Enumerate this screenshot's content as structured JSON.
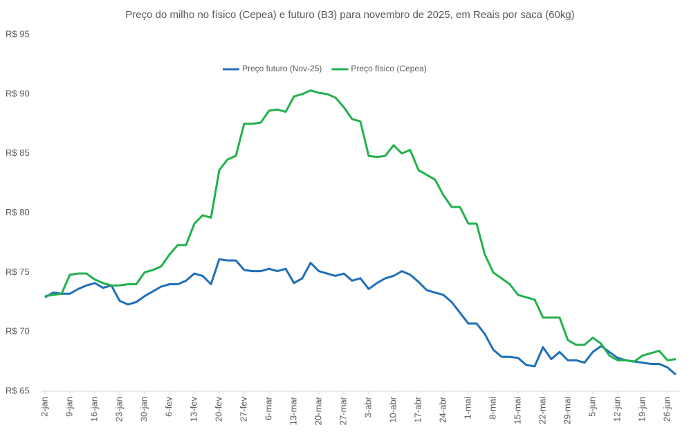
{
  "chart_data": {
    "type": "line",
    "title": "Preço do milho no físico (Cepea) e futuro (B3) para novembro de 2025, em Reais por saca (60kg)",
    "categories": [
      "2-jan",
      null,
      null,
      "9-jan",
      null,
      null,
      "16-jan",
      null,
      null,
      "23-jan",
      null,
      null,
      "30-jan",
      null,
      null,
      "6-fev",
      null,
      null,
      "13-fev",
      null,
      null,
      "20-fev",
      null,
      null,
      "27-fev",
      null,
      null,
      "6-mar",
      null,
      null,
      "13-mar",
      null,
      null,
      "20-mar",
      null,
      null,
      "27-mar",
      null,
      null,
      "3-abr",
      null,
      null,
      "10-abr",
      null,
      null,
      "17-abr",
      null,
      null,
      "24-abr",
      null,
      null,
      "1-mai",
      null,
      null,
      "8-mai",
      null,
      null,
      "15-mai",
      null,
      null,
      "22-mai",
      null,
      null,
      "29-mai",
      null,
      null,
      "5-jun",
      null,
      null,
      "12-jun",
      null,
      null,
      "19-jun",
      null,
      null,
      "26-jun",
      null
    ],
    "series": [
      {
        "name": "Preço futuro (Nov-25)",
        "color": "#1f6fb8",
        "values": [
          72.9,
          73.3,
          73.2,
          73.2,
          73.6,
          73.9,
          74.1,
          73.7,
          73.9,
          72.6,
          72.3,
          72.5,
          73.0,
          73.4,
          73.8,
          74.0,
          74.0,
          74.3,
          74.9,
          74.7,
          74.0,
          76.1,
          76.0,
          76.0,
          75.2,
          75.1,
          75.1,
          75.3,
          75.1,
          75.3,
          74.1,
          74.5,
          75.8,
          75.1,
          74.9,
          74.7,
          74.9,
          74.3,
          74.5,
          73.6,
          74.1,
          74.5,
          74.7,
          75.1,
          74.8,
          74.2,
          73.5,
          73.3,
          73.1,
          72.5,
          71.6,
          70.7,
          70.7,
          69.8,
          68.5,
          67.9,
          67.9,
          67.8,
          67.2,
          67.1,
          68.7,
          67.7,
          68.3,
          67.6,
          67.6,
          67.4,
          68.3,
          68.8,
          68.3,
          67.8,
          67.6,
          67.5,
          67.4,
          67.3,
          67.3,
          67.0,
          66.4
        ]
      },
      {
        "name": "Preço físico (Cepea)",
        "color": "#22b14c",
        "values": [
          73.0,
          73.1,
          73.2,
          74.8,
          74.9,
          74.9,
          74.4,
          74.1,
          73.9,
          73.9,
          74.0,
          74.0,
          75.0,
          75.2,
          75.5,
          76.5,
          77.3,
          77.3,
          79.1,
          79.8,
          79.6,
          83.6,
          84.5,
          84.8,
          87.5,
          87.5,
          87.6,
          88.6,
          88.7,
          88.5,
          89.8,
          90.0,
          90.3,
          90.1,
          90.0,
          89.7,
          88.9,
          87.9,
          87.7,
          84.8,
          84.7,
          84.8,
          85.7,
          85.0,
          85.3,
          83.6,
          83.2,
          82.8,
          81.5,
          80.5,
          80.5,
          79.1,
          79.1,
          76.5,
          75.0,
          74.5,
          74.0,
          73.1,
          72.9,
          72.7,
          71.2,
          71.2,
          71.2,
          69.3,
          68.9,
          68.9,
          69.5,
          69.0,
          68.0,
          67.6,
          67.6,
          67.5,
          68.0,
          68.2,
          68.4,
          67.6,
          67.7
        ]
      }
    ],
    "ylim": [
      65,
      95
    ],
    "yticks": [
      {
        "value": 65,
        "label": "R$ 65"
      },
      {
        "value": 70,
        "label": "R$ 70"
      },
      {
        "value": 75,
        "label": "R$ 75"
      },
      {
        "value": 80,
        "label": "R$ 80"
      },
      {
        "value": 85,
        "label": "R$ 85"
      },
      {
        "value": 90,
        "label": "R$ 90"
      },
      {
        "value": 95,
        "label": "R$ 95"
      }
    ],
    "grid": false,
    "legend": "top"
  }
}
